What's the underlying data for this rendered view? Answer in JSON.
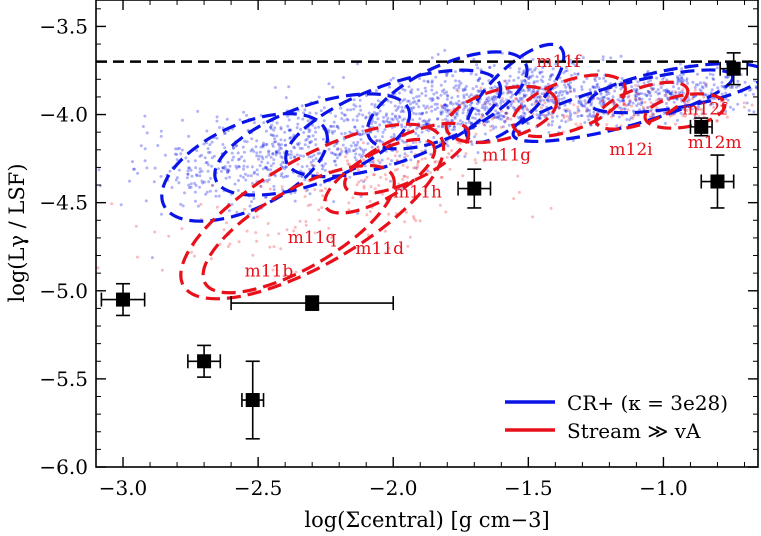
{
  "chart_data": {
    "type": "scatter",
    "title": "",
    "xlabel": "log(Σcentral) [g cm−3]",
    "ylabel": "log(Lγ / LSF)",
    "xlim": [
      -3.1,
      -0.65
    ],
    "ylim": [
      -6.0,
      -3.35
    ],
    "xticks": [
      -3.0,
      -2.5,
      -2.0,
      -1.5,
      -1.0
    ],
    "xtick_labels": [
      "−3.0",
      "−2.5",
      "−2.0",
      "−1.5",
      "−1.0"
    ],
    "yticks": [
      -3.5,
      -4.0,
      -4.5,
      -5.0,
      -5.5,
      -6.0
    ],
    "ytick_labels": [
      "−3.5",
      "−4.0",
      "−4.5",
      "−5.0",
      "−5.5",
      "−6.0"
    ],
    "reference_line": {
      "y": -3.7,
      "style": "dashed",
      "color": "#000000"
    },
    "legend": {
      "location": "lower-right",
      "entries": [
        {
          "label": "CR+ (κ = 3e28)",
          "color": "#0a14e6"
        },
        {
          "label": "Stream ≫ vA",
          "color": "#e8101a"
        }
      ]
    },
    "colors": {
      "cr_plus": "#0a14e6",
      "stream": "#e8101a",
      "observations": "#000000"
    },
    "contours": [
      {
        "series": "CR+",
        "cx": -2.55,
        "cy": -4.3,
        "a": 0.33,
        "b": 0.24,
        "angle": 25
      },
      {
        "series": "CR+",
        "cx": -2.3,
        "cy": -4.17,
        "a": 0.38,
        "b": 0.22,
        "angle": 20
      },
      {
        "series": "CR+",
        "cx": -2.0,
        "cy": -4.05,
        "a": 0.42,
        "b": 0.22,
        "angle": 20
      },
      {
        "series": "CR+",
        "cx": -1.8,
        "cy": -3.92,
        "a": 0.32,
        "b": 0.2,
        "angle": 25
      },
      {
        "series": "CR+",
        "cx": -1.55,
        "cy": -3.88,
        "a": 0.24,
        "b": 0.14,
        "angle": 45
      },
      {
        "series": "CR+",
        "cx": -1.15,
        "cy": -3.95,
        "a": 0.42,
        "b": 0.12,
        "angle": 15
      },
      {
        "series": "CR+",
        "cx": -0.95,
        "cy": -3.85,
        "a": 0.33,
        "b": 0.11,
        "angle": 10
      },
      {
        "series": "Stream",
        "cx": -2.35,
        "cy": -4.65,
        "a": 0.4,
        "b": 0.22,
        "angle": 30
      },
      {
        "series": "Stream",
        "cx": -2.3,
        "cy": -4.55,
        "a": 0.55,
        "b": 0.3,
        "angle": 30
      },
      {
        "series": "Stream",
        "cx": -2.05,
        "cy": -4.35,
        "a": 0.23,
        "b": 0.13,
        "angle": 30
      },
      {
        "series": "Stream",
        "cx": -1.95,
        "cy": -4.25,
        "a": 0.25,
        "b": 0.13,
        "angle": 25
      },
      {
        "series": "Stream",
        "cx": -1.6,
        "cy": -4.0,
        "a": 0.21,
        "b": 0.14,
        "angle": 15
      },
      {
        "series": "Stream",
        "cx": -1.35,
        "cy": -3.95,
        "a": 0.22,
        "b": 0.14,
        "angle": 20
      },
      {
        "series": "Stream",
        "cx": -1.08,
        "cy": -3.95,
        "a": 0.18,
        "b": 0.1,
        "angle": 20
      },
      {
        "series": "Stream",
        "cx": -0.92,
        "cy": -3.98,
        "a": 0.15,
        "b": 0.09,
        "angle": 10
      }
    ],
    "halo_labels": [
      {
        "text": "m11b",
        "x": -2.55,
        "y": -4.92
      },
      {
        "text": "m11q",
        "x": -2.39,
        "y": -4.73
      },
      {
        "text": "m11d",
        "x": -2.14,
        "y": -4.79
      },
      {
        "text": "m11h",
        "x": -2.0,
        "y": -4.47
      },
      {
        "text": "m11g",
        "x": -1.67,
        "y": -4.26
      },
      {
        "text": "m11f",
        "x": -1.47,
        "y": -3.73
      },
      {
        "text": "m12i",
        "x": -1.2,
        "y": -4.23
      },
      {
        "text": "m12f",
        "x": -0.93,
        "y": -4.0
      },
      {
        "text": "m12m",
        "x": -0.91,
        "y": -4.19
      }
    ],
    "observations": [
      {
        "x": -3.0,
        "y": -5.05,
        "xerr": 0.08,
        "yerr": 0.09
      },
      {
        "x": -2.7,
        "y": -5.4,
        "xerr": 0.06,
        "yerr": 0.09
      },
      {
        "x": -2.52,
        "y": -5.62,
        "xerr": 0.04,
        "yerr": 0.22
      },
      {
        "x": -2.3,
        "y": -5.07,
        "xerr_low": 0.3,
        "xerr_high": 0.3,
        "yerr": 0.04
      },
      {
        "x": -1.7,
        "y": -4.42,
        "xerr": 0.06,
        "yerr": 0.11
      },
      {
        "x": -0.86,
        "y": -4.07,
        "xerr": 0.04,
        "yerr": 0.05
      },
      {
        "x": -0.8,
        "y": -4.38,
        "xerr": 0.06,
        "yerr": 0.15
      },
      {
        "x": -0.74,
        "y": -3.74,
        "xerr": 0.05,
        "yerr": 0.09
      }
    ]
  }
}
